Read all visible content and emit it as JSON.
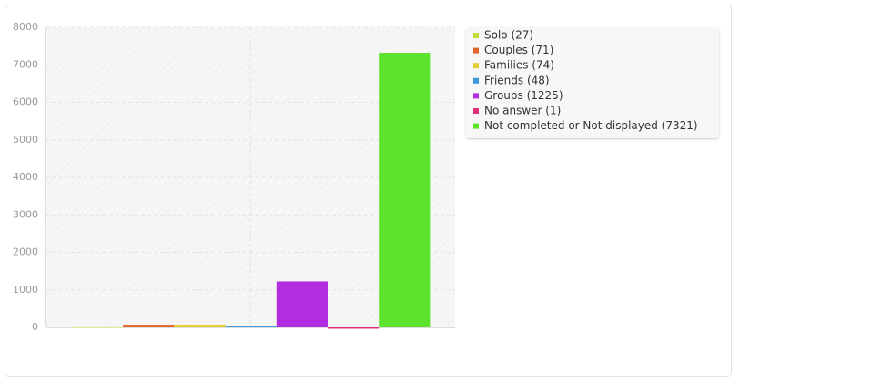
{
  "chart_data": {
    "type": "bar",
    "categories": [
      "Solo (27)",
      "Couples (71)",
      "Families (74)",
      "Friends (48)",
      "Groups (1225)",
      "No answer (1)",
      "Not completed or Not displayed (7321)"
    ],
    "values": [
      27,
      71,
      74,
      48,
      1225,
      1,
      7321
    ],
    "colors": [
      "#bfdc37",
      "#e0662c",
      "#e6cf34",
      "#3a99de",
      "#b12de0",
      "#e02c7a",
      "#5de22d"
    ],
    "ylim": [
      0,
      8000
    ],
    "yticks": [
      0,
      1000,
      2000,
      3000,
      4000,
      5000,
      6000,
      7000,
      8000
    ],
    "grid": true,
    "legend": "right"
  }
}
